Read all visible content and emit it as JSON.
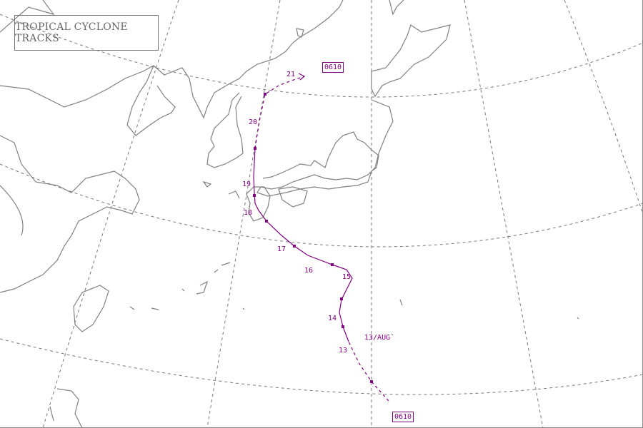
{
  "title": "TROPICAL CYCLONE TRACKS",
  "cyclone": {
    "id": "0610",
    "color": "#800080",
    "start_label": "13/AUG",
    "day_labels": [
      "13",
      "14",
      "15",
      "16",
      "17",
      "18",
      "19",
      "20",
      "21"
    ]
  },
  "colors": {
    "coastline": "#808080",
    "graticule": "#777777",
    "track": "#800080"
  }
}
